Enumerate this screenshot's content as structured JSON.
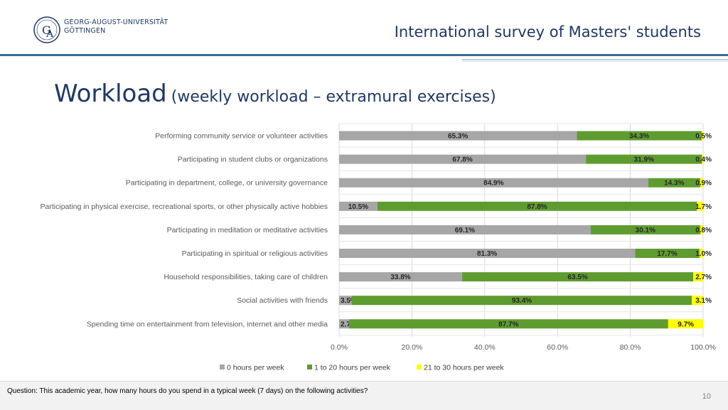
{
  "header": {
    "university_line1": "GEORG-AUGUST-UNIVERSITÄT",
    "university_line2": "GÖTTINGEN",
    "survey_title": "International survey of Masters' students"
  },
  "page": {
    "title_main": "Workload",
    "title_sub": "(weekly workload – extramural exercises)"
  },
  "footer": {
    "question": "Question: This academic year, how many hours do you spend in a typical week (7 days) on the following activities?",
    "page_number": "10"
  },
  "colors": {
    "zero": "#a6a6a6",
    "one_to_twenty": "#5f9c30",
    "twenty_one_to_thirty": "#ffff00",
    "title": "#1f3864"
  },
  "chart_data": {
    "type": "bar",
    "orientation": "horizontal",
    "stacked": "percent",
    "categories": [
      "Performing community service or volunteer activities",
      "Participating in student clubs or organizations",
      "Participating in department, college, or university governance",
      "Participating in physical exercise, recreational sports, or other physically active hobbies",
      "Participating in meditation or meditative activities",
      "Participating in spiritual or religious activities",
      "Household responsibilities, taking care of children",
      "Social activities with friends",
      "Spending time on entertainment from television, internet and other media"
    ],
    "series": [
      {
        "name": "0 hours per week",
        "values": [
          65.3,
          67.8,
          84.9,
          10.5,
          69.1,
          81.3,
          33.8,
          3.5,
          2.7
        ]
      },
      {
        "name": "1 to 20 hours per week",
        "values": [
          34.3,
          31.9,
          14.3,
          87.8,
          30.1,
          17.7,
          63.5,
          93.4,
          87.7
        ]
      },
      {
        "name": "21 to 30 hours per week",
        "values": [
          0.5,
          0.4,
          0.9,
          1.7,
          0.8,
          1.0,
          2.7,
          3.1,
          9.7
        ]
      }
    ],
    "data_labels": [
      [
        "65.3%",
        "34.3%",
        "0.5%"
      ],
      [
        "67.8%",
        "31.9%",
        "0.4%"
      ],
      [
        "84.9%",
        "14.3%",
        "0.9%"
      ],
      [
        "10.5%",
        "87.8%",
        "1.7%"
      ],
      [
        "69.1%",
        "30.1%",
        "0.8%"
      ],
      [
        "81.3%",
        "17.7%",
        "1.0%"
      ],
      [
        "33.8%",
        "63.5%",
        "2.7%"
      ],
      [
        "3.5%",
        "93.4%",
        "3.1%"
      ],
      [
        "2.7%",
        "87.7%",
        "9.7%"
      ]
    ],
    "x_ticks": [
      "0.0%",
      "20.0%",
      "40.0%",
      "60.0%",
      "80.0%",
      "100.0%"
    ],
    "xlim": [
      0,
      100
    ],
    "grid": true,
    "legend_position": "bottom"
  }
}
